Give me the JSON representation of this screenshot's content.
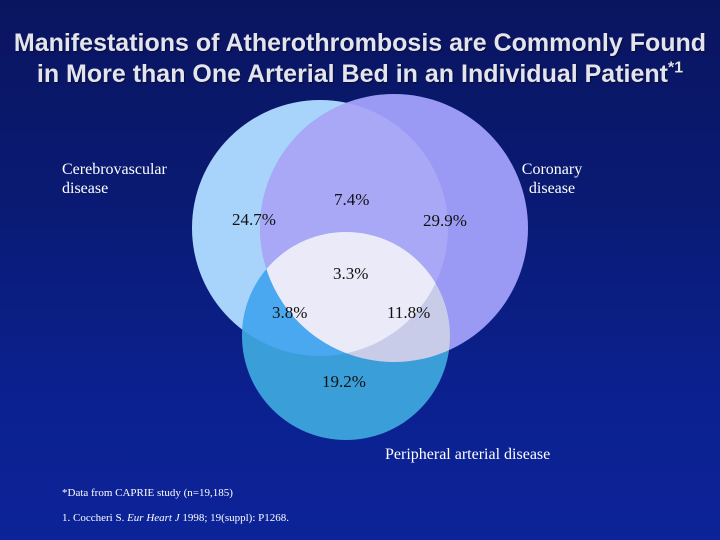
{
  "title": {
    "text": "Manifestations of Atherothrombosis are Commonly Found in More than One Arterial Bed in an Individual Patient",
    "superscript": "*1"
  },
  "sets": {
    "cerebrovascular": "Cerebrovascular disease",
    "coronary": "Coronary disease",
    "peripheral": "Peripheral arterial disease"
  },
  "regions": {
    "cerebrovascular_only": "24.7%",
    "cerebro_coronary": "7.4%",
    "coronary_only": "29.9%",
    "all_three": "3.3%",
    "cerebro_peripheral": "3.8%",
    "coronary_peripheral": "11.8%",
    "peripheral_only": "19.2%"
  },
  "footnotes": {
    "data_note": "*Data from CAPRIE study (n=19,185)",
    "ref_prefix": "1. Coccheri S. ",
    "ref_journal": "Eur Heart J",
    "ref_suffix": " 1998; 19(suppl): P1268."
  },
  "colors": {
    "background": "#0b1c80",
    "cerebrovascular": "#a8d4fb",
    "coronary": "#9a9af5",
    "peripheral": "#3a9ed8",
    "cerebro_coronary": "#a8a8f6",
    "cerebro_peripheral": "#4aa8f0",
    "coronary_peripheral": "#c8cce8",
    "all_three": "#eaeaf8"
  }
}
